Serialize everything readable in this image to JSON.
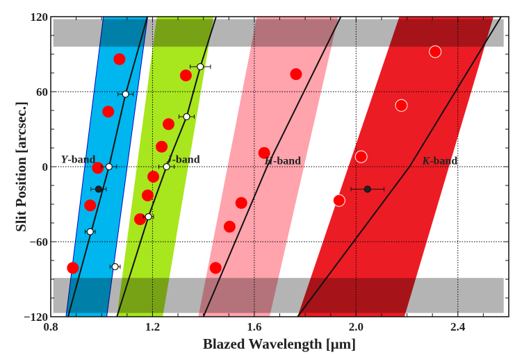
{
  "chart_data": {
    "type": "scatter",
    "xlabel": "Blazed Wavelength [μm]",
    "ylabel": "Slit Position [arcsec.]",
    "xlim": [
      0.8,
      2.6
    ],
    "ylim": [
      -120,
      120
    ],
    "xticks": [
      0.8,
      1.2,
      1.6,
      2.0,
      2.4
    ],
    "xtick_labels": [
      "0.8",
      "1.2",
      "1.6",
      "2.0",
      "2.4"
    ],
    "yticks": [
      -120,
      -60,
      0,
      60,
      120
    ],
    "ytick_labels": [
      "−120",
      "−60",
      "0",
      "60",
      "120"
    ],
    "grid": true,
    "gray_regions": [
      {
        "y": [
          96,
          118
        ],
        "x": [
          0.81,
          2.58
        ],
        "color": "#b4b4b4"
      },
      {
        "y": [
          -117,
          -89
        ],
        "x": [
          0.81,
          2.58
        ],
        "color": "#b4b4b4"
      }
    ],
    "bands": [
      {
        "name": "Y",
        "label_italic": "Y",
        "label_rest": "-band",
        "label_pos": [
          0.84,
          3
        ],
        "color": "#00b6ee",
        "edge": "#0000cc",
        "bottom": [
          0.86,
          1.02
        ],
        "top": [
          1.007,
          1.181
        ],
        "curve": [
          [
            0.868,
            -120
          ],
          [
            1.029,
            0
          ],
          [
            1.094,
            58
          ],
          [
            1.18,
            120
          ]
        ]
      },
      {
        "name": "J",
        "label_italic": "J",
        "label_rest": "-band",
        "label_pos": [
          1.255,
          3
        ],
        "color": "#a8e61e",
        "edge": null,
        "bottom": [
          1.06,
          1.24
        ],
        "top": [
          1.217,
          1.44
        ],
        "curve": [
          [
            1.06,
            -120
          ],
          [
            1.184,
            -40
          ],
          [
            1.255,
            0
          ],
          [
            1.334,
            40
          ],
          [
            1.388,
            80
          ],
          [
            1.45,
            120
          ]
        ]
      },
      {
        "name": "H",
        "label_italic": "H",
        "label_rest": "-band",
        "label_pos": [
          1.64,
          2
        ],
        "color": "#ffa3ad",
        "edge": null,
        "bottom": [
          1.38,
          1.66
        ],
        "top": [
          1.61,
          1.93
        ],
        "curve": [
          [
            1.4,
            -120
          ],
          [
            1.65,
            0
          ],
          [
            1.94,
            120
          ]
        ]
      },
      {
        "name": "K",
        "label_italic": "K",
        "label_rest": "-band",
        "label_pos": [
          2.26,
          2
        ],
        "color": "#ec1c24",
        "edge": null,
        "bottom": [
          1.77,
          2.19
        ],
        "top": [
          2.17,
          2.54
        ],
        "curve": [
          [
            1.77,
            -120
          ],
          [
            2.21,
            0
          ],
          [
            2.57,
            120
          ]
        ]
      }
    ],
    "red_points": [
      {
        "band": "Y",
        "x": 1.07,
        "y": 86
      },
      {
        "band": "Y",
        "x": 1.026,
        "y": 44
      },
      {
        "band": "Y",
        "x": 0.985,
        "y": -1
      },
      {
        "band": "Y",
        "x": 0.955,
        "y": -31
      },
      {
        "band": "Y",
        "x": 0.887,
        "y": -81
      },
      {
        "band": "J",
        "x": 1.331,
        "y": 73
      },
      {
        "band": "J",
        "x": 1.263,
        "y": 34
      },
      {
        "band": "J",
        "x": 1.236,
        "y": 16
      },
      {
        "band": "J",
        "x": 1.203,
        "y": -8
      },
      {
        "band": "J",
        "x": 1.181,
        "y": -23
      },
      {
        "band": "J",
        "x": 1.151,
        "y": -42
      },
      {
        "band": "H",
        "x": 1.764,
        "y": 74
      },
      {
        "band": "H",
        "x": 1.639,
        "y": 11
      },
      {
        "band": "H",
        "x": 1.549,
        "y": -29
      },
      {
        "band": "H",
        "x": 1.503,
        "y": -48
      },
      {
        "band": "H",
        "x": 1.448,
        "y": -81
      },
      {
        "band": "K",
        "x": 2.311,
        "y": 92
      },
      {
        "band": "K",
        "x": 2.178,
        "y": 49
      },
      {
        "band": "K",
        "x": 2.02,
        "y": 8
      },
      {
        "band": "K",
        "x": 1.933,
        "y": -27
      }
    ],
    "open_points": [
      {
        "x": 1.094,
        "y": 58,
        "xerr": 0.03
      },
      {
        "x": 1.029,
        "y": 0,
        "xerr": 0.03
      },
      {
        "x": 0.955,
        "y": -52,
        "xerr": 0.02
      },
      {
        "x": 1.388,
        "y": 80,
        "xerr": 0.04
      },
      {
        "x": 1.334,
        "y": 40,
        "xerr": 0.03
      },
      {
        "x": 1.255,
        "y": 0,
        "xerr": 0.03
      },
      {
        "x": 1.184,
        "y": -40,
        "xerr": 0.02
      },
      {
        "x": 1.053,
        "y": -80,
        "xerr": 0.02
      }
    ],
    "filled_points": [
      {
        "x": 0.988,
        "y": -18,
        "xerr": 0.03
      },
      {
        "x": 2.045,
        "y": -18,
        "xerr": 0.065
      }
    ],
    "colors": {
      "red_point": "#ff0000",
      "curve": "#111111",
      "grid": "#000000"
    }
  }
}
